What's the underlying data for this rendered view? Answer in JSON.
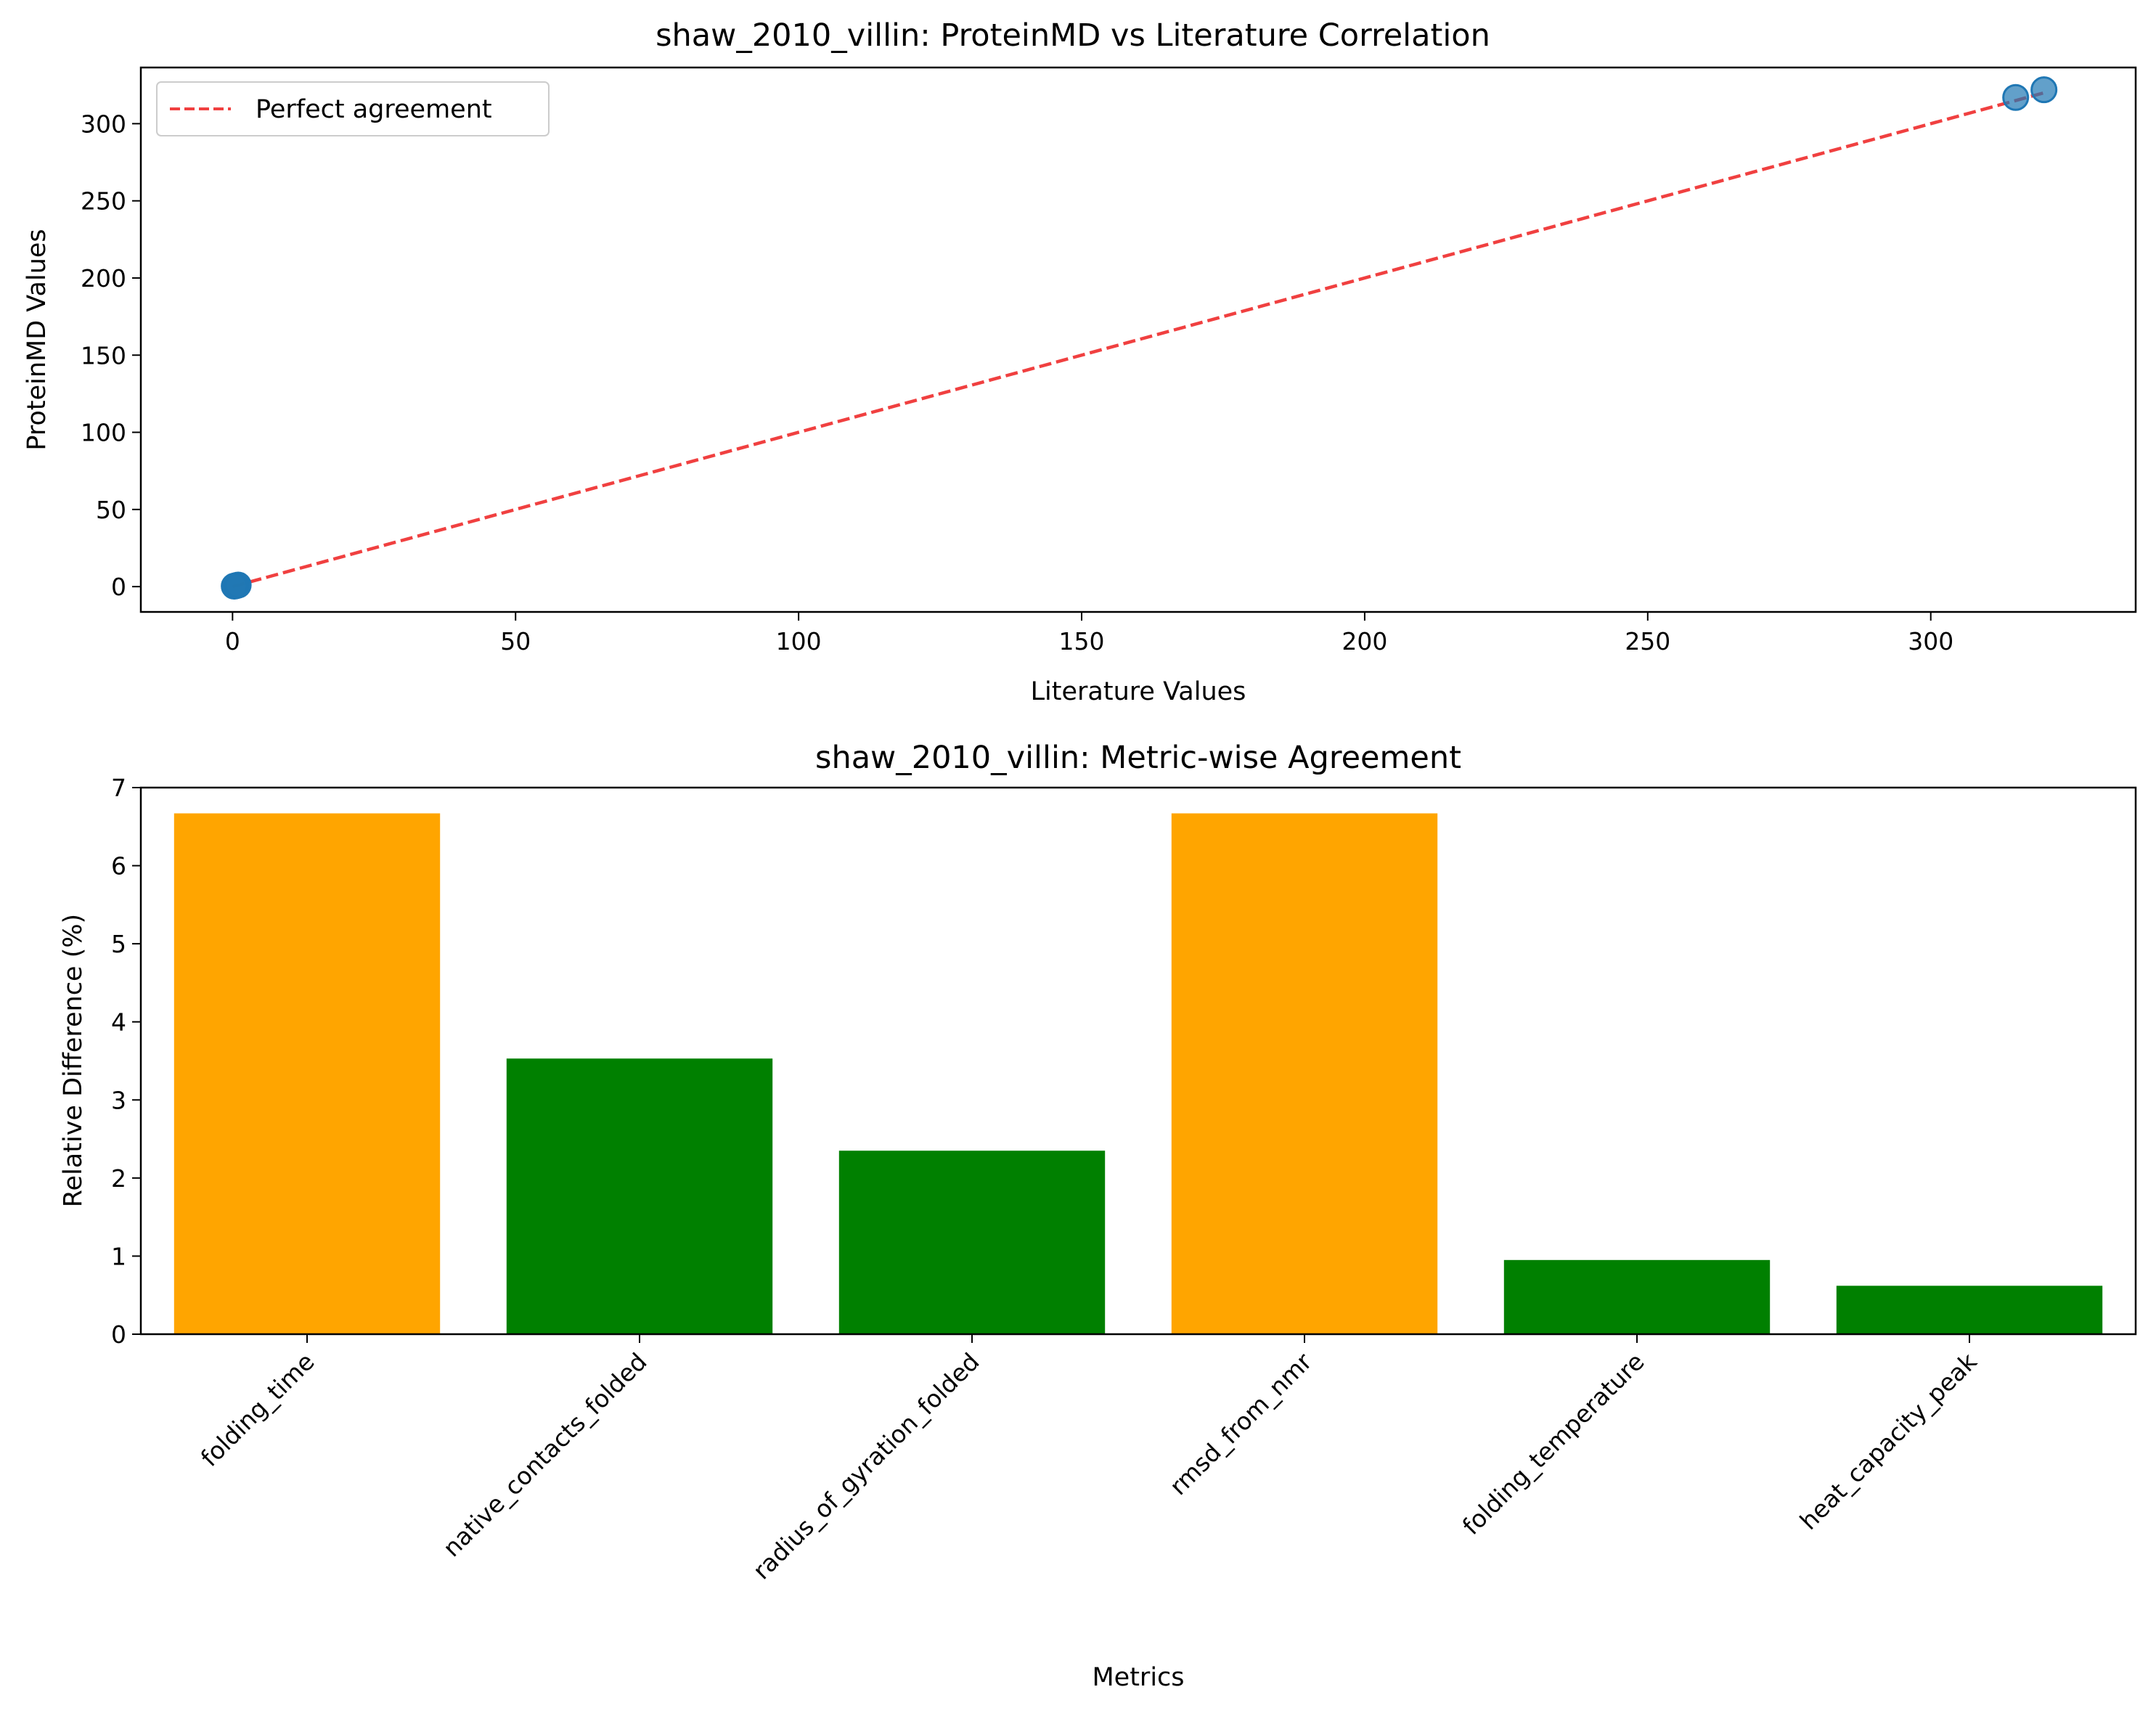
{
  "chart_data": [
    {
      "type": "scatter",
      "title": "shaw_2010_villin: ProteinMD vs Literature Correlation",
      "xlabel": "Literature Values",
      "ylabel": "ProteinMD Values",
      "xlim": [
        -16.2,
        336.2
      ],
      "ylim": [
        -16.4,
        336.4
      ],
      "xticks": [
        0,
        50,
        100,
        150,
        200,
        250,
        300
      ],
      "yticks": [
        0,
        50,
        100,
        150,
        200,
        250,
        300
      ],
      "points": [
        {
          "x": 0.3,
          "y": 0.3
        },
        {
          "x": 0.5,
          "y": 0.5
        },
        {
          "x": 0.7,
          "y": 0.7
        },
        {
          "x": 1.0,
          "y": 1.0
        },
        {
          "x": 315.0,
          "y": 317.0
        },
        {
          "x": 320.0,
          "y": 322.0
        }
      ],
      "point_color": "#1f77b4",
      "reference_line": {
        "name": "Perfect agreement",
        "x": [
          0,
          320
        ],
        "y": [
          0,
          320
        ],
        "color": "#f04040",
        "style": "dashed"
      },
      "legend": {
        "placement": "upper-left",
        "entries": [
          "Perfect agreement"
        ]
      },
      "grid": false
    },
    {
      "type": "bar",
      "title": "shaw_2010_villin: Metric-wise Agreement",
      "xlabel": "Metrics",
      "ylabel": "Relative Difference (%)",
      "ylim": [
        0,
        7
      ],
      "yticks": [
        0,
        1,
        2,
        3,
        4,
        5,
        6,
        7
      ],
      "categories": [
        "folding_time",
        "native_contacts_folded",
        "radius_of_gyration_folded",
        "rmsd_from_nmr",
        "folding_temperature",
        "heat_capacity_peak"
      ],
      "values": [
        6.67,
        3.53,
        2.35,
        6.67,
        0.95,
        0.62
      ],
      "colors": [
        "#ffa500",
        "#008000",
        "#008000",
        "#ffa500",
        "#008000",
        "#008000"
      ],
      "grid": false
    }
  ]
}
